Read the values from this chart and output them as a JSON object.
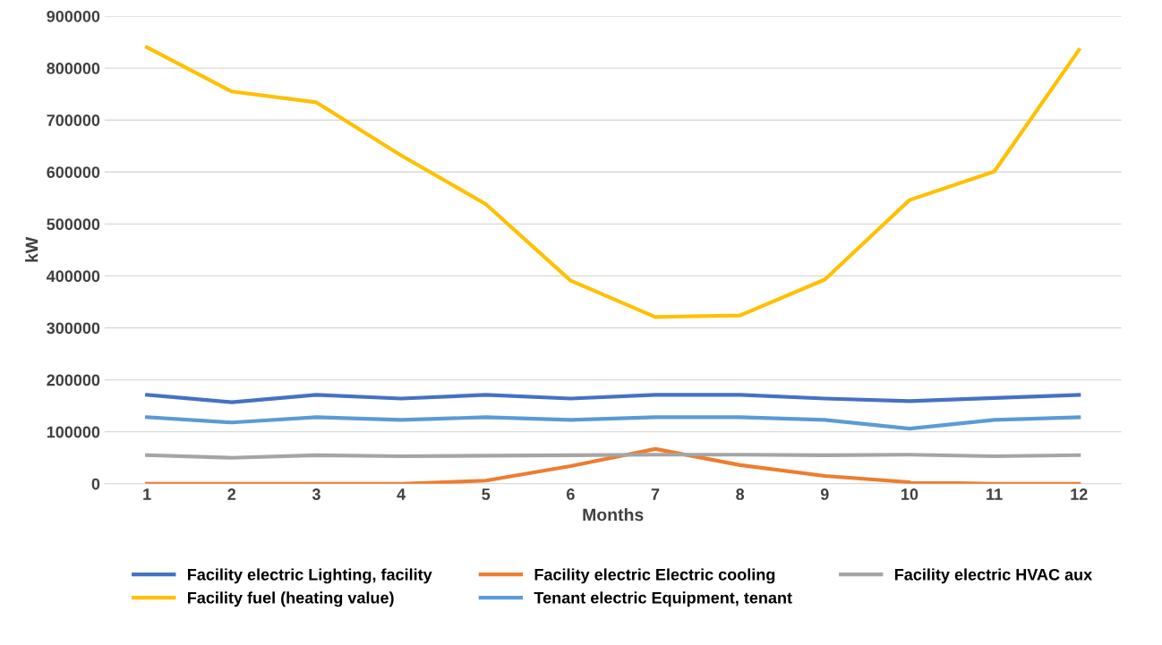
{
  "chart_data": {
    "type": "line",
    "xlabel": "Months",
    "ylabel": "kW",
    "categories": [
      "1",
      "2",
      "3",
      "4",
      "5",
      "6",
      "7",
      "8",
      "9",
      "10",
      "11",
      "12"
    ],
    "series": [
      {
        "name": "Facility electric Lighting, facility",
        "color": "#4472c4",
        "values": [
          171000,
          157000,
          171000,
          164000,
          171000,
          164000,
          171000,
          171000,
          164000,
          159000,
          165000,
          171000
        ]
      },
      {
        "name": "Facility electric Electric cooling",
        "color": "#ed7d31",
        "values": [
          0,
          0,
          0,
          0,
          6000,
          34000,
          67000,
          36000,
          15000,
          3000,
          0,
          0
        ]
      },
      {
        "name": "Facility electric HVAC aux",
        "color": "#a5a5a5",
        "values": [
          55000,
          50000,
          55000,
          53000,
          54000,
          55000,
          56000,
          56000,
          55000,
          56000,
          53000,
          55000
        ]
      },
      {
        "name": "Facility fuel (heating value)",
        "color": "#ffc000",
        "values": [
          840000,
          755000,
          734000,
          632000,
          538000,
          391000,
          321000,
          324000,
          393000,
          546000,
          601000,
          835000
        ]
      },
      {
        "name": "Tenant electric Equipment, tenant",
        "color": "#5b9bd5",
        "values": [
          128000,
          118000,
          128000,
          123000,
          128000,
          123000,
          128000,
          128000,
          123000,
          106000,
          123000,
          128000
        ]
      }
    ],
    "ylim": [
      0,
      900000
    ],
    "yticks": [
      0,
      100000,
      200000,
      300000,
      400000,
      500000,
      600000,
      700000,
      800000,
      900000
    ],
    "grid": "y",
    "legend": "bottom",
    "marker": "none",
    "line_style": "solid"
  }
}
